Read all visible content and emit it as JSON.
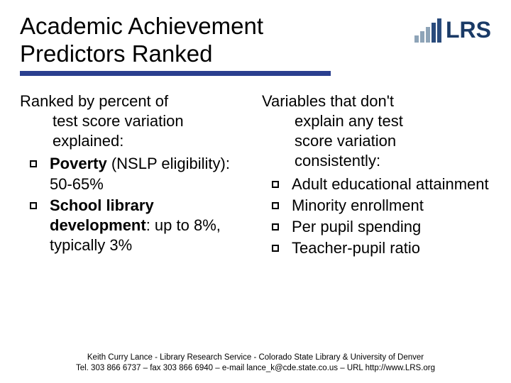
{
  "title_line1": "Academic Achievement",
  "title_line2": "Predictors Ranked",
  "logo_text": "LRS",
  "colors": {
    "rule": "#2a3f8f",
    "logo_dark": "#2a4b7c",
    "logo_light": "#8ea4b8",
    "text": "#000000",
    "bg": "#ffffff"
  },
  "left": {
    "lead_a": "Ranked by percent of",
    "lead_b": "test score variation",
    "lead_c": "explained:",
    "items": [
      {
        "bold": "Poverty",
        "rest": " (NSLP eligibility):  50-65%"
      },
      {
        "bold": "School library development",
        "rest": ": up to 8%, typically 3%"
      }
    ]
  },
  "right": {
    "lead_a": "Variables that don't",
    "lead_b": "explain any test",
    "lead_c": "score variation",
    "lead_d": "consistently:",
    "items": [
      {
        "text": "Adult educational attainment"
      },
      {
        "text": "Minority enrollment"
      },
      {
        "text": "Per pupil spending"
      },
      {
        "text": "Teacher-pupil ratio"
      }
    ]
  },
  "footer_line1": "Keith Curry Lance - Library Research Service -  Colorado State Library & University of Denver",
  "footer_line2": "Tel. 303 866 6737 – fax 303 866 6940 – e-mail lance_k@cde.state.co.us – URL http://www.LRS.org"
}
